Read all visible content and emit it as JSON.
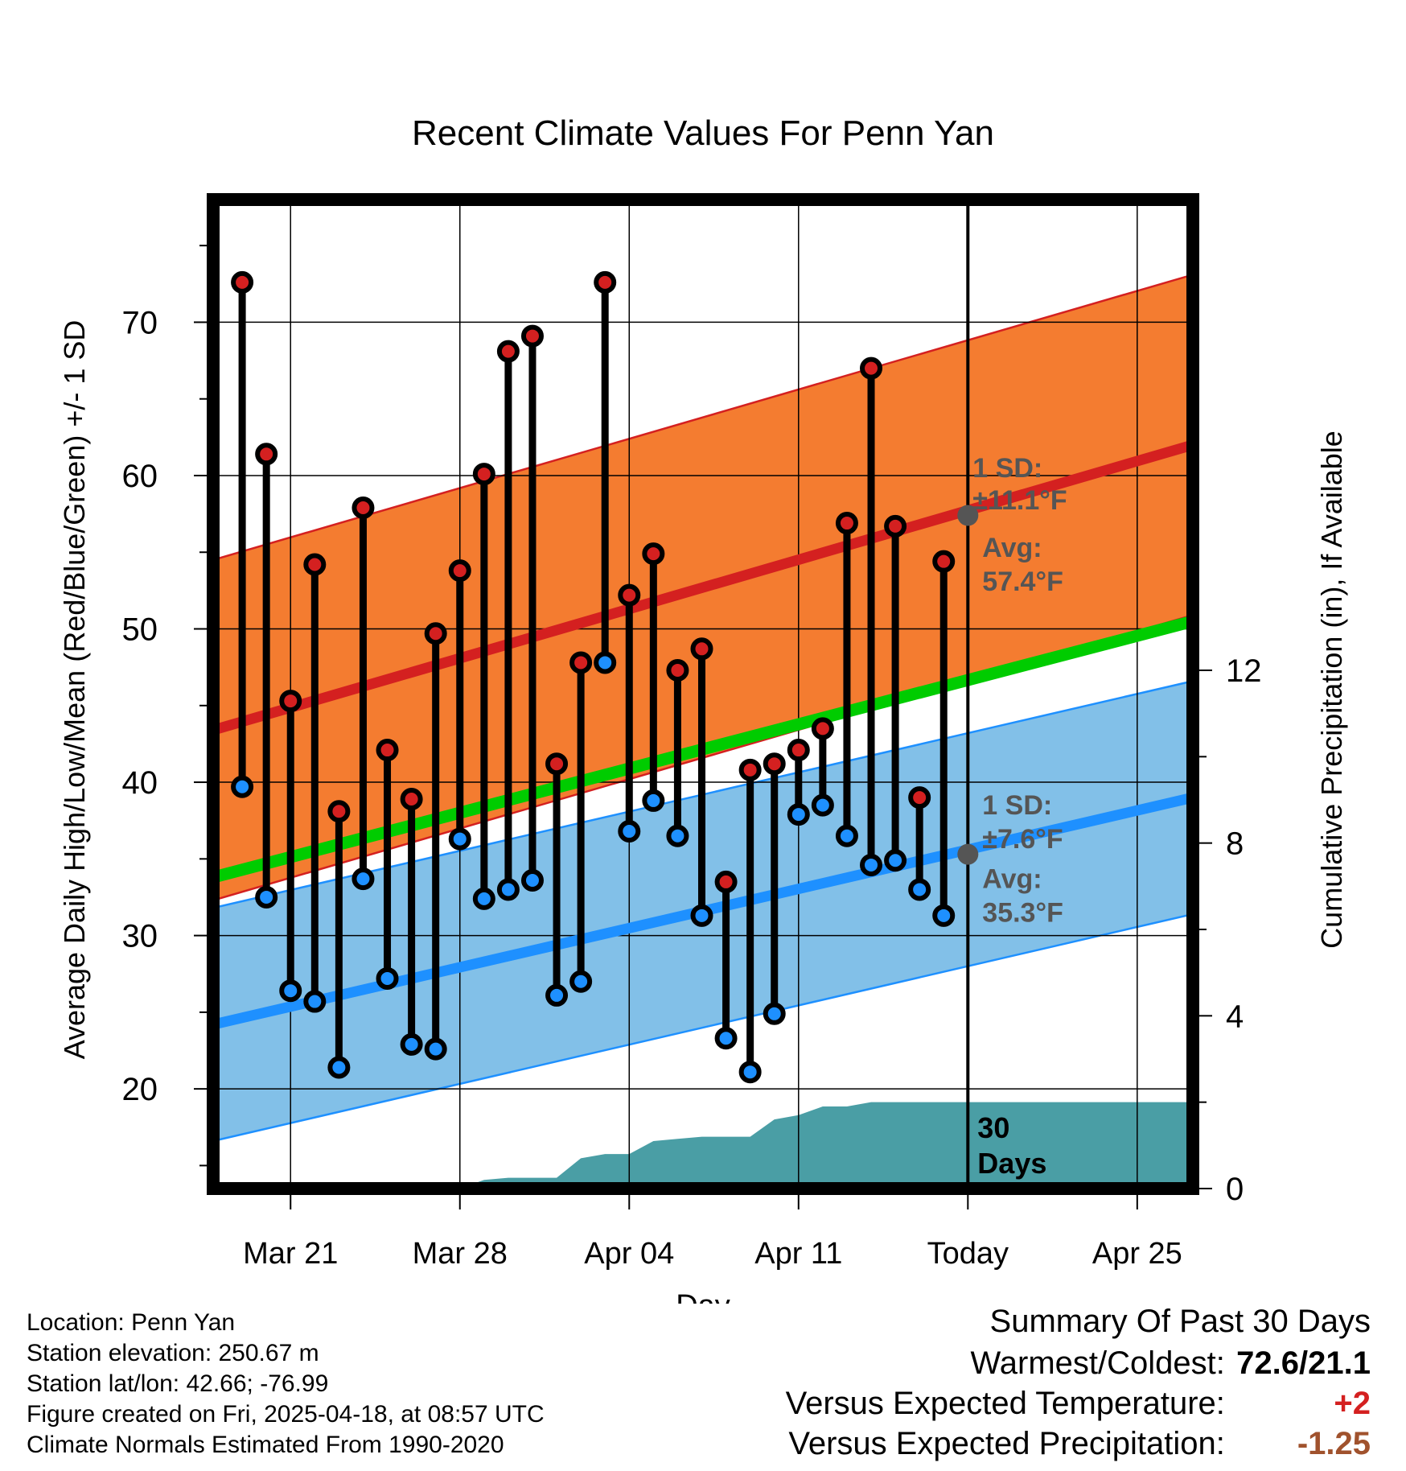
{
  "chart_data": {
    "type": "line",
    "title": "Recent Climate Values For Penn Yan",
    "xlabel": "Day",
    "ylabel": "Average Daily High/Low/Mean (Red/Blue/Green) +/- 1 SD",
    "y2label": "Cumulative Precipitation (in), If Available",
    "ylim": [
      13.5,
      78
    ],
    "y2lim": [
      0,
      22.9
    ],
    "x_ticks": [
      {
        "day": 3,
        "label": "Mar 21"
      },
      {
        "day": 10,
        "label": "Mar 28"
      },
      {
        "day": 17,
        "label": "Apr 04"
      },
      {
        "day": 24,
        "label": "Apr 11"
      },
      {
        "day": 31,
        "label": "Today"
      },
      {
        "day": 38,
        "label": "Apr 25"
      }
    ],
    "y_ticks": [
      20,
      30,
      40,
      50,
      60,
      70
    ],
    "y2_ticks": [
      0,
      4,
      8,
      12
    ],
    "xlim": [
      -0.2,
      40.3
    ],
    "today_day": 31,
    "days": [
      1,
      2,
      3,
      4,
      5,
      6,
      7,
      8,
      9,
      10,
      11,
      12,
      13,
      14,
      15,
      16,
      17,
      18,
      19,
      20,
      21,
      22,
      23,
      24,
      25,
      26,
      27,
      28,
      29,
      30
    ],
    "series": [
      {
        "name": "Observed High",
        "color": "#d42020",
        "values": [
          72.6,
          61.4,
          45.3,
          54.2,
          38.1,
          57.9,
          42.1,
          38.9,
          49.7,
          53.8,
          60.1,
          68.1,
          69.1,
          41.2,
          47.8,
          72.6,
          52.2,
          54.9,
          47.3,
          48.7,
          33.5,
          40.8,
          41.2,
          42.1,
          43.5,
          56.9,
          67.0,
          56.7,
          39.0,
          54.4
        ]
      },
      {
        "name": "Observed Low",
        "color": "#1e90ff",
        "values": [
          39.7,
          32.5,
          26.4,
          25.7,
          21.4,
          33.7,
          27.2,
          22.9,
          22.6,
          36.3,
          32.4,
          33.0,
          33.6,
          26.1,
          27.0,
          47.8,
          36.8,
          38.8,
          36.5,
          31.3,
          23.3,
          21.1,
          24.9,
          37.9,
          38.5,
          36.5,
          34.6,
          34.9,
          33.0,
          31.3
        ]
      }
    ],
    "normal_high": {
      "start": 43.4,
      "end": 62.0,
      "sd": 11.1,
      "today_avg": 57.4
    },
    "normal_low": {
      "start": 24.2,
      "end": 39.0,
      "sd": 7.6,
      "today_avg": 35.3
    },
    "normal_mean": {
      "start": 33.8,
      "end": 50.5
    },
    "precip_cumulative": {
      "days": [
        9,
        10,
        11,
        12,
        13,
        14,
        15,
        16,
        17,
        18,
        19,
        20,
        21,
        22,
        23,
        24,
        25,
        26,
        27,
        28,
        29,
        30,
        31,
        40.3
      ],
      "values": [
        0,
        0,
        0.2,
        0.25,
        0.25,
        0.25,
        0.7,
        0.8,
        0.8,
        1.1,
        1.15,
        1.2,
        1.2,
        1.2,
        1.6,
        1.7,
        1.9,
        1.9,
        2.0,
        2.0,
        2.0,
        2.0,
        2.0,
        2.0
      ]
    },
    "annotations": {
      "high_sd_label": "1 SD:",
      "high_sd_value": "±11.1°F",
      "high_avg_label": "Avg:",
      "high_avg_value": "57.4°F",
      "low_sd_label": "1 SD:",
      "low_sd_value": "±7.6°F",
      "low_avg_label": "Avg:",
      "low_avg_value": "35.3°F",
      "precip_line1": "30",
      "precip_line2": "Days"
    },
    "colors": {
      "high_band": "#f47c30",
      "high_line": "#d42020",
      "low_band": "#82c0e8",
      "low_line": "#1e90ff",
      "mean_line": "#00cc00",
      "precip_fill": "#4a9ea5",
      "annotation": "#555555"
    }
  },
  "info": {
    "location": "Location: Penn Yan",
    "elevation": "Station elevation: 250.67 m",
    "latlon": "Station lat/lon: 42.66; -76.99",
    "created": "Figure created on Fri, 2025-04-18, at 08:57 UTC",
    "normals": "Climate Normals Estimated From 1990-2020"
  },
  "summary": {
    "heading": "Summary Of Past 30 Days",
    "warmest_label": "Warmest/Coldest:",
    "warmest_value": "72.6/21.1",
    "temp_label": "Versus Expected Temperature:",
    "temp_value": "+2",
    "temp_color": "#d42020",
    "precip_label": "Versus Expected Precipitation:",
    "precip_value": "-1.25",
    "precip_color": "#a0522d"
  }
}
